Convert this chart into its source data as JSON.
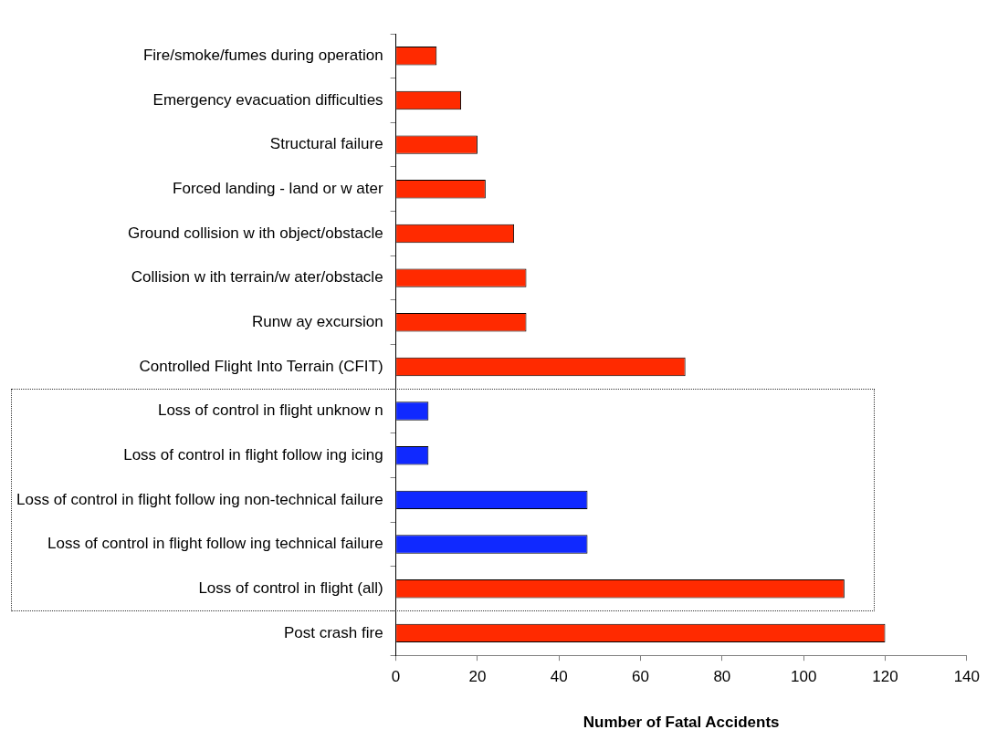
{
  "chart_data": {
    "type": "bar",
    "orientation": "horizontal",
    "xlabel": "Number of Fatal Accidents",
    "categories": [
      "Fire/smoke/fumes during operation",
      "Emergency evacuation difficulties",
      "Structural failure",
      "Forced landing - land or w ater",
      "Ground collision w ith object/obstacle",
      "Collision w ith terrain/w ater/obstacle",
      "Runw ay excursion",
      "Controlled Flight Into Terrain (CFIT)",
      "Loss of control in flight unknow n",
      "Loss of control in flight follow ing icing",
      "Loss of control in flight follow ing non-technical failure",
      "Loss of control in flight follow ing technical failure",
      "Loss of control in flight (all)",
      "Post crash fire"
    ],
    "values": [
      10,
      16,
      20,
      22,
      29,
      32,
      32,
      71,
      8,
      8,
      47,
      47,
      110,
      120
    ],
    "colors": [
      "#ff2a00",
      "#ff2a00",
      "#ff2a00",
      "#ff2a00",
      "#ff2a00",
      "#ff2a00",
      "#ff2a00",
      "#ff2a00",
      "#1029ff",
      "#1029ff",
      "#1029ff",
      "#1029ff",
      "#ff2a00",
      "#ff2a00"
    ],
    "xlim": [
      0,
      140
    ],
    "xticks": [
      0,
      20,
      40,
      60,
      80,
      100,
      120,
      140
    ],
    "grid": false,
    "legend": false
  }
}
